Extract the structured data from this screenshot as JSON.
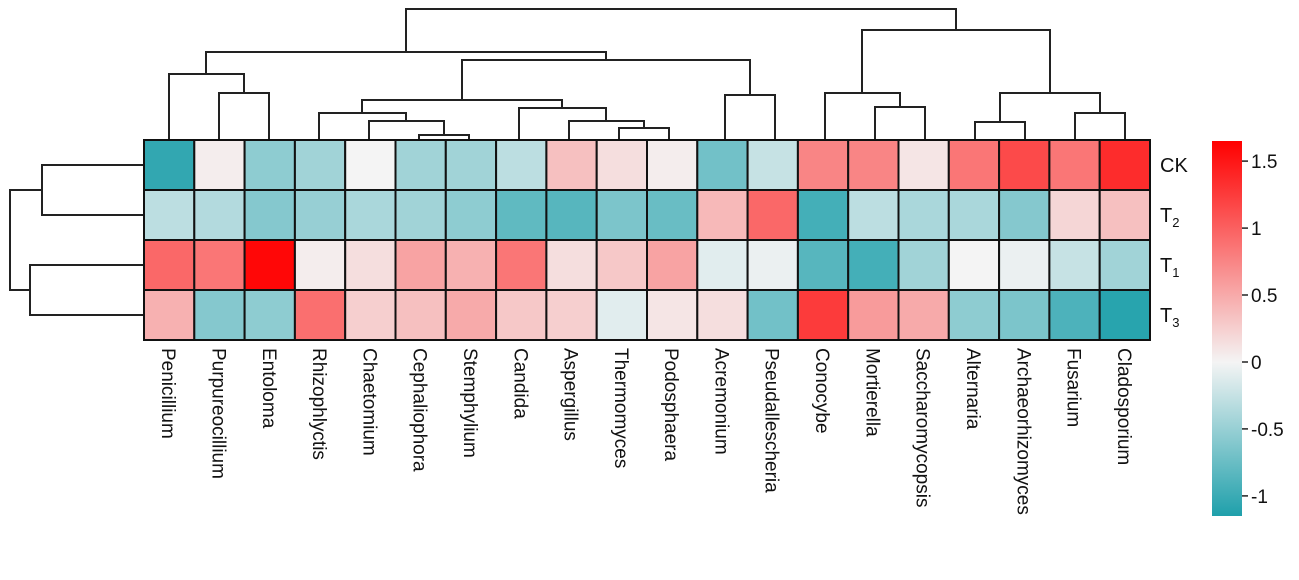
{
  "chart_data": {
    "type": "heatmap",
    "columns": [
      "Penicillium",
      "Purpureocillium",
      "Entoloma",
      "Rhizophlyctis",
      "Chaetomium",
      "Cephaliophora",
      "Stemphylium",
      "Candida",
      "Aspergillus",
      "Thermomyces",
      "Podosphaera",
      "Acremonium",
      "Pseudallescheria",
      "Conocybe",
      "Mortierella",
      "Saccharomycopsis",
      "Alternaria",
      "Archaeorhizomyces",
      "Fusarium",
      "Cladosporium"
    ],
    "rows": [
      {
        "name": "CK",
        "sub": ""
      },
      {
        "name": "T",
        "sub": "2"
      },
      {
        "name": "T",
        "sub": "1"
      },
      {
        "name": "T",
        "sub": "3"
      }
    ],
    "values": [
      [
        -1.05,
        0.05,
        -0.55,
        -0.45,
        0.0,
        -0.45,
        -0.45,
        -0.3,
        0.35,
        0.15,
        0.05,
        -0.7,
        -0.25,
        0.75,
        0.75,
        0.1,
        0.85,
        1.15,
        0.85,
        1.35
      ],
      [
        -0.3,
        -0.35,
        -0.6,
        -0.5,
        -0.4,
        -0.45,
        -0.55,
        -0.8,
        -0.85,
        -0.65,
        -0.75,
        0.4,
        0.95,
        -0.95,
        -0.3,
        -0.4,
        -0.4,
        -0.6,
        0.2,
        0.35
      ],
      [
        0.95,
        0.85,
        1.6,
        0.05,
        0.15,
        0.55,
        0.45,
        0.85,
        0.15,
        0.3,
        0.55,
        -0.1,
        -0.05,
        -0.85,
        -0.95,
        -0.45,
        0.0,
        -0.05,
        -0.25,
        -0.45
      ],
      [
        0.45,
        -0.6,
        -0.55,
        0.9,
        0.25,
        0.35,
        0.5,
        0.3,
        0.25,
        -0.1,
        0.1,
        0.15,
        -0.7,
        1.25,
        0.6,
        0.5,
        -0.55,
        -0.65,
        -0.9,
        -1.1
      ]
    ],
    "colorbar": {
      "min": -1.15,
      "max": 1.65,
      "ticks": [
        "1.5",
        "1",
        "0.5",
        "0",
        "-0.5",
        "-1"
      ],
      "tick_values": [
        1.5,
        1,
        0.5,
        0,
        -0.5,
        -1
      ],
      "low_color": "#1fa0ab",
      "mid_color": "#f4f4f4",
      "high_color": "#ff0000"
    },
    "column_dendrogram": true,
    "row_dendrogram": true
  }
}
